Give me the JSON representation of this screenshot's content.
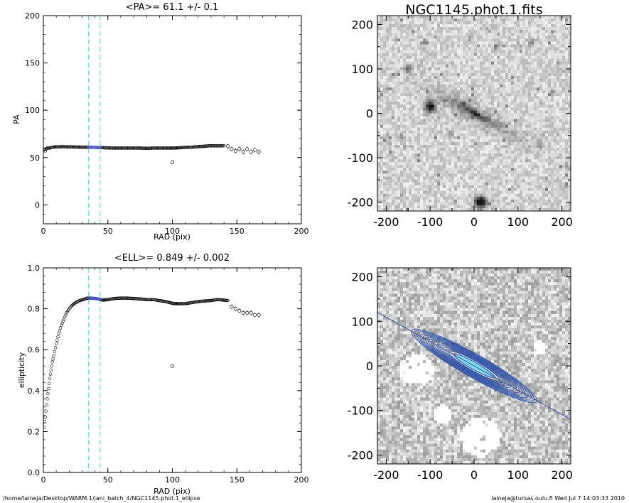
{
  "chart_data": [
    {
      "type": "scatter",
      "title": "<PA>=  61.1 +/-   0.1",
      "xlabel": "RAD (pix)",
      "ylabel": "PA",
      "xlim": [
        0,
        200
      ],
      "ylim": [
        -20,
        200
      ],
      "xticks": [
        "0",
        "50",
        "100",
        "150",
        "200"
      ],
      "yticks": [
        "0",
        "50",
        "100",
        "150",
        "200"
      ],
      "vlines": [
        35,
        44
      ],
      "highlight_range": [
        35,
        45
      ],
      "outliers": [
        {
          "x": 100,
          "y": 45
        }
      ],
      "series_profile": [
        [
          0.5,
          58
        ],
        [
          1,
          59
        ],
        [
          1.5,
          57
        ],
        [
          2,
          59
        ],
        [
          3,
          60
        ],
        [
          4,
          60
        ],
        [
          5,
          60
        ],
        [
          7,
          61
        ],
        [
          10,
          61.3
        ],
        [
          15,
          61.5
        ],
        [
          20,
          61.3
        ],
        [
          25,
          61.2
        ],
        [
          30,
          61.0
        ],
        [
          35,
          61.0
        ],
        [
          40,
          60.8
        ],
        [
          45,
          60.5
        ],
        [
          50,
          60.2
        ],
        [
          55,
          60.0
        ],
        [
          60,
          60.0
        ],
        [
          65,
          60.0
        ],
        [
          70,
          60.0
        ],
        [
          75,
          60.0
        ],
        [
          80,
          59.8
        ],
        [
          85,
          60.0
        ],
        [
          90,
          60.0
        ],
        [
          95,
          60.0
        ],
        [
          101,
          60.0
        ],
        [
          105,
          60.3
        ],
        [
          110,
          60.8
        ],
        [
          115,
          61.0
        ],
        [
          120,
          61.5
        ],
        [
          125,
          62.0
        ],
        [
          130,
          62.5
        ],
        [
          135,
          62.3
        ],
        [
          140,
          62.5
        ]
      ],
      "series_sparse": [
        [
          143,
          62
        ],
        [
          146,
          59
        ],
        [
          149,
          57
        ],
        [
          152,
          59
        ],
        [
          155,
          56
        ],
        [
          158,
          59
        ],
        [
          161,
          56
        ],
        [
          164,
          58
        ],
        [
          167,
          56
        ]
      ]
    },
    {
      "type": "scatter",
      "title": "<ELL>= 0.849 +/-  0.002",
      "xlabel": "RAD (pix)",
      "ylabel": "ellipticity",
      "xlim": [
        0,
        200
      ],
      "ylim": [
        0,
        1
      ],
      "xticks": [
        "0",
        "50",
        "100",
        "150",
        "200"
      ],
      "yticks": [
        "0.0",
        "0.2",
        "0.4",
        "0.6",
        "0.8",
        "1.0"
      ],
      "vlines": [
        35,
        44
      ],
      "highlight_range": [
        35,
        45
      ],
      "outliers": [
        {
          "x": 100,
          "y": 0.52
        }
      ],
      "series_profile": [
        [
          0.5,
          0.22
        ],
        [
          1,
          0.25
        ],
        [
          1.5,
          0.27
        ],
        [
          2,
          0.3
        ],
        [
          3,
          0.36
        ],
        [
          4,
          0.41
        ],
        [
          5,
          0.46
        ],
        [
          6,
          0.5
        ],
        [
          7,
          0.54
        ],
        [
          8,
          0.57
        ],
        [
          10,
          0.63
        ],
        [
          12,
          0.68
        ],
        [
          14,
          0.72
        ],
        [
          16,
          0.75
        ],
        [
          18,
          0.78
        ],
        [
          20,
          0.8
        ],
        [
          22,
          0.815
        ],
        [
          25,
          0.83
        ],
        [
          28,
          0.84
        ],
        [
          31,
          0.845
        ],
        [
          34,
          0.852
        ],
        [
          37,
          0.852
        ],
        [
          40,
          0.85
        ],
        [
          43,
          0.848
        ],
        [
          46,
          0.842
        ],
        [
          50,
          0.845
        ],
        [
          55,
          0.85
        ],
        [
          60,
          0.852
        ],
        [
          65,
          0.852
        ],
        [
          70,
          0.85
        ],
        [
          75,
          0.848
        ],
        [
          80,
          0.845
        ],
        [
          85,
          0.845
        ],
        [
          90,
          0.84
        ],
        [
          95,
          0.835
        ],
        [
          101,
          0.825
        ],
        [
          105,
          0.825
        ],
        [
          110,
          0.825
        ],
        [
          115,
          0.83
        ],
        [
          120,
          0.835
        ],
        [
          125,
          0.838
        ],
        [
          130,
          0.84
        ],
        [
          135,
          0.845
        ],
        [
          140,
          0.842
        ],
        [
          143,
          0.84
        ]
      ],
      "series_sparse": [
        [
          146,
          0.81
        ],
        [
          149,
          0.8
        ],
        [
          152,
          0.79
        ],
        [
          155,
          0.78
        ],
        [
          158,
          0.78
        ],
        [
          161,
          0.78
        ],
        [
          164,
          0.77
        ],
        [
          167,
          0.77
        ]
      ]
    },
    {
      "type": "heatmap",
      "title": "NGC1145.phot.1.fits",
      "xlim": [
        -220,
        220
      ],
      "ylim": [
        -220,
        220
      ],
      "xticks": [
        "-200",
        "-100",
        "0",
        "100",
        "200"
      ],
      "yticks": [
        "200",
        "100",
        "0",
        "-100",
        "-200"
      ],
      "colormap": "inverted-grayscale"
    },
    {
      "type": "heatmap",
      "title": "",
      "xlim": [
        -220,
        220
      ],
      "ylim": [
        -220,
        220
      ],
      "xticks": [
        "-200",
        "-100",
        "0",
        "100",
        "200"
      ],
      "yticks": [
        "200",
        "100",
        "0",
        "-100",
        "-200"
      ],
      "colormap": "inverted-grayscale",
      "line_color": "#3a50a8",
      "contour_color": "#3355aa",
      "core_color": "#7fdcf0"
    }
  ],
  "footer": {
    "path": "/home/laineja/Desktop/WARM.1/jani_batch_4/NGC1145.phot.1_ellipse",
    "user_date": "laineja@tursas.oulu.fi  Wed Jul  7 14:03:33 2010"
  }
}
